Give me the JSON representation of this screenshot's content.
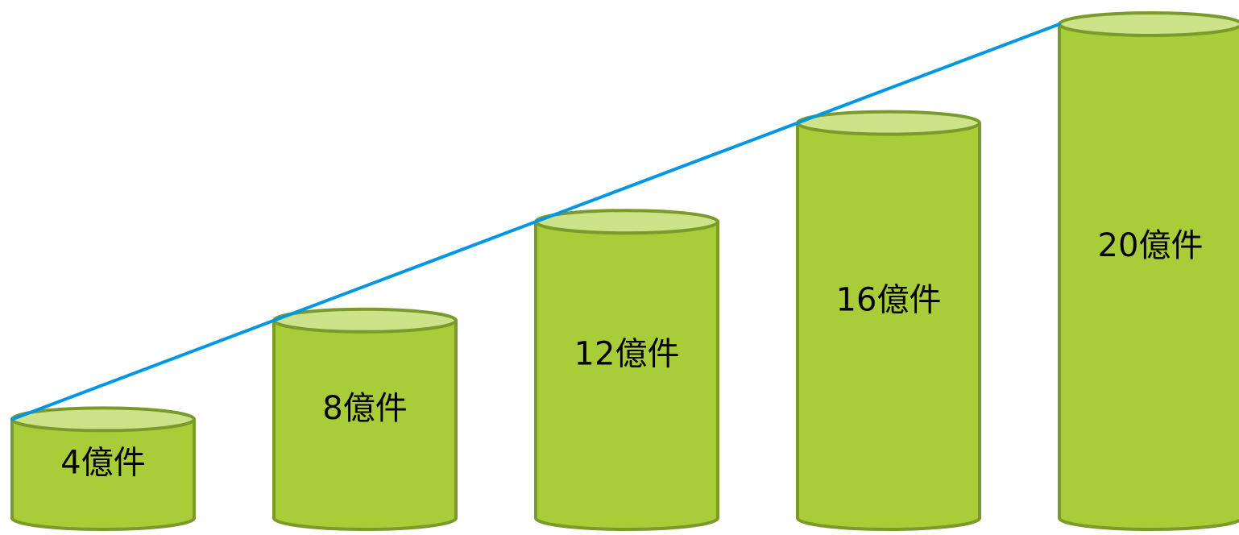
{
  "chart_data": {
    "type": "bar",
    "style": "3d-cylinder",
    "categories": [
      "4億件",
      "8億件",
      "12億件",
      "16億件",
      "20億件"
    ],
    "values": [
      4,
      8,
      12,
      16,
      20
    ],
    "data_labels": [
      "4億件",
      "8億件",
      "12億件",
      "16億件",
      "20億件"
    ],
    "unit": "億件",
    "title": "",
    "xlabel": "",
    "ylabel": "",
    "ylim": [
      0,
      20
    ],
    "grid": false,
    "legend": "none",
    "trend_line": {
      "type": "line",
      "connects": "top-left of each cylinder"
    }
  },
  "colors": {
    "bar_fill": "#a9cd38",
    "bar_top_fill": "#cde38a",
    "bar_stroke": "#7a9a2c",
    "trend_line": "#0096e6",
    "label_text": "#000000",
    "background": "#ffffff"
  }
}
